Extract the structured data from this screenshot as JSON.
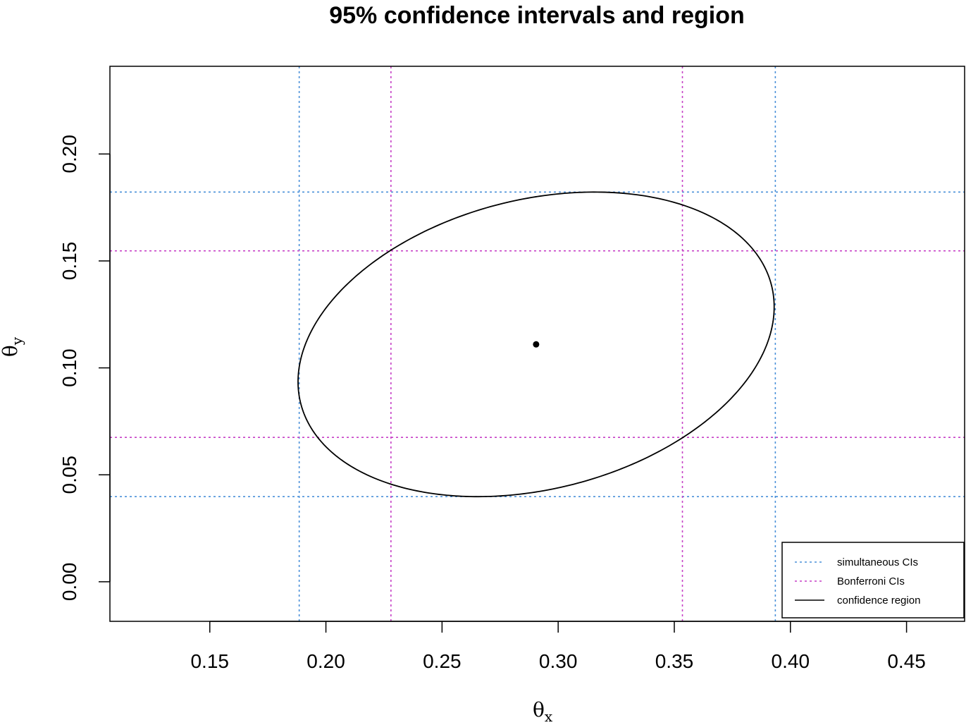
{
  "chart_data": {
    "type": "scatter",
    "title": "95% confidence intervals and region",
    "xlabel": {
      "main": "θ",
      "sub": "x"
    },
    "ylabel": {
      "main": "θ",
      "sub": "y"
    },
    "xlim": [
      0.107,
      0.475
    ],
    "ylim": [
      -0.0185,
      0.241
    ],
    "xticks": [
      0.15,
      0.2,
      0.25,
      0.3,
      0.35,
      0.4,
      0.45
    ],
    "xtick_labels": [
      "0.15",
      "0.20",
      "0.25",
      "0.30",
      "0.35",
      "0.40",
      "0.45"
    ],
    "yticks": [
      0.0,
      0.05,
      0.1,
      0.15,
      0.2
    ],
    "ytick_labels": [
      "0.00",
      "0.05",
      "0.10",
      "0.15",
      "0.20"
    ],
    "grid": false,
    "point_estimate": {
      "x": 0.2905,
      "y": 0.111
    },
    "simultaneous_ci": {
      "x": [
        0.1885,
        0.3935
      ],
      "y": [
        0.0398,
        0.1822
      ],
      "color": "#4a90d9"
    },
    "bonferroni_ci": {
      "x": [
        0.228,
        0.3535
      ],
      "y": [
        0.0675,
        0.1547
      ],
      "color": "#c63fc6"
    },
    "confidence_region": {
      "type": "ellipse",
      "center": [
        0.2905,
        0.111
      ],
      "x_range": [
        0.1885,
        0.3935
      ],
      "y_range": [
        0.0398,
        0.1822
      ],
      "y_at_x_extremes": [
        0.0935,
        0.1285
      ],
      "color": "#000000"
    },
    "legend": {
      "position": "bottom-right",
      "entries": [
        {
          "label": "simultaneous CIs",
          "style": "dotted",
          "color": "#4a90d9"
        },
        {
          "label": "Bonferroni CIs",
          "style": "dotted",
          "color": "#c63fc6"
        },
        {
          "label": "confidence region",
          "style": "solid",
          "color": "#000000"
        }
      ]
    }
  }
}
